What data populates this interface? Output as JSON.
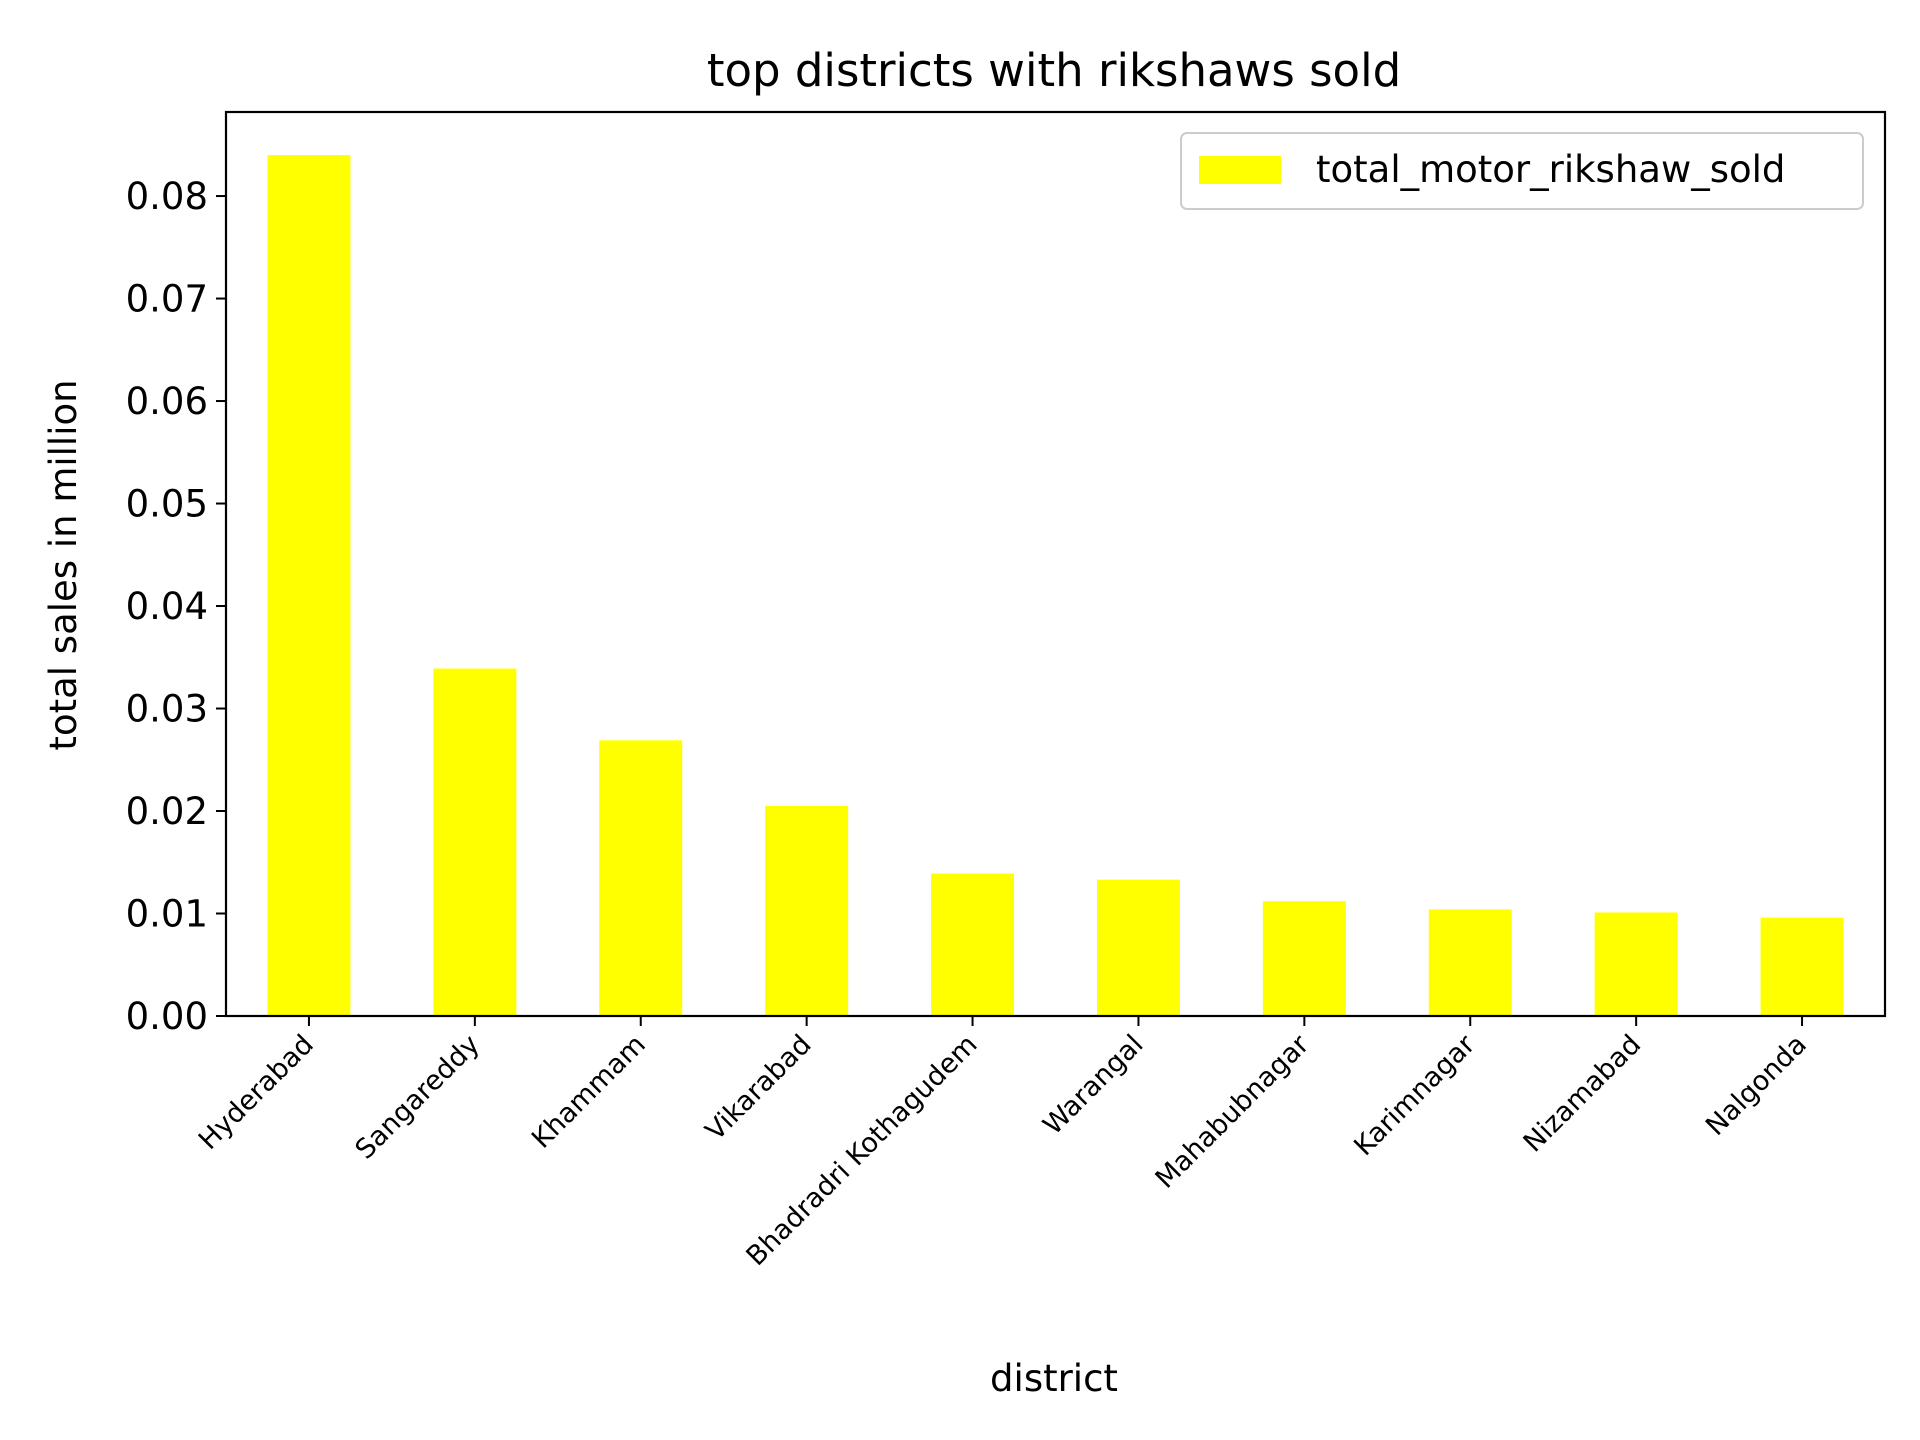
{
  "chart_data": {
    "type": "bar",
    "title": "top districts with rikshaws sold",
    "xlabel": "district",
    "ylabel": "total sales in million",
    "categories": [
      "Hyderabad",
      "Sangareddy",
      "Khammam",
      "Vikarabad",
      "Bhadradri Kothagudem",
      "Warangal",
      "Mahabubnagar",
      "Karimnagar",
      "Nizamabad",
      "Nalgonda"
    ],
    "series": [
      {
        "name": "total_motor_rikshaw_sold",
        "values": [
          0.084,
          0.0339,
          0.0269,
          0.0205,
          0.0139,
          0.0133,
          0.0112,
          0.0104,
          0.0101,
          0.0096
        ],
        "color": "#ffff00"
      }
    ],
    "ylim": [
      0,
      0.0882
    ],
    "yticks": [
      "0.00",
      "0.01",
      "0.02",
      "0.03",
      "0.04",
      "0.05",
      "0.06",
      "0.07",
      "0.08"
    ],
    "grid": false,
    "legend_position": "top-right"
  }
}
